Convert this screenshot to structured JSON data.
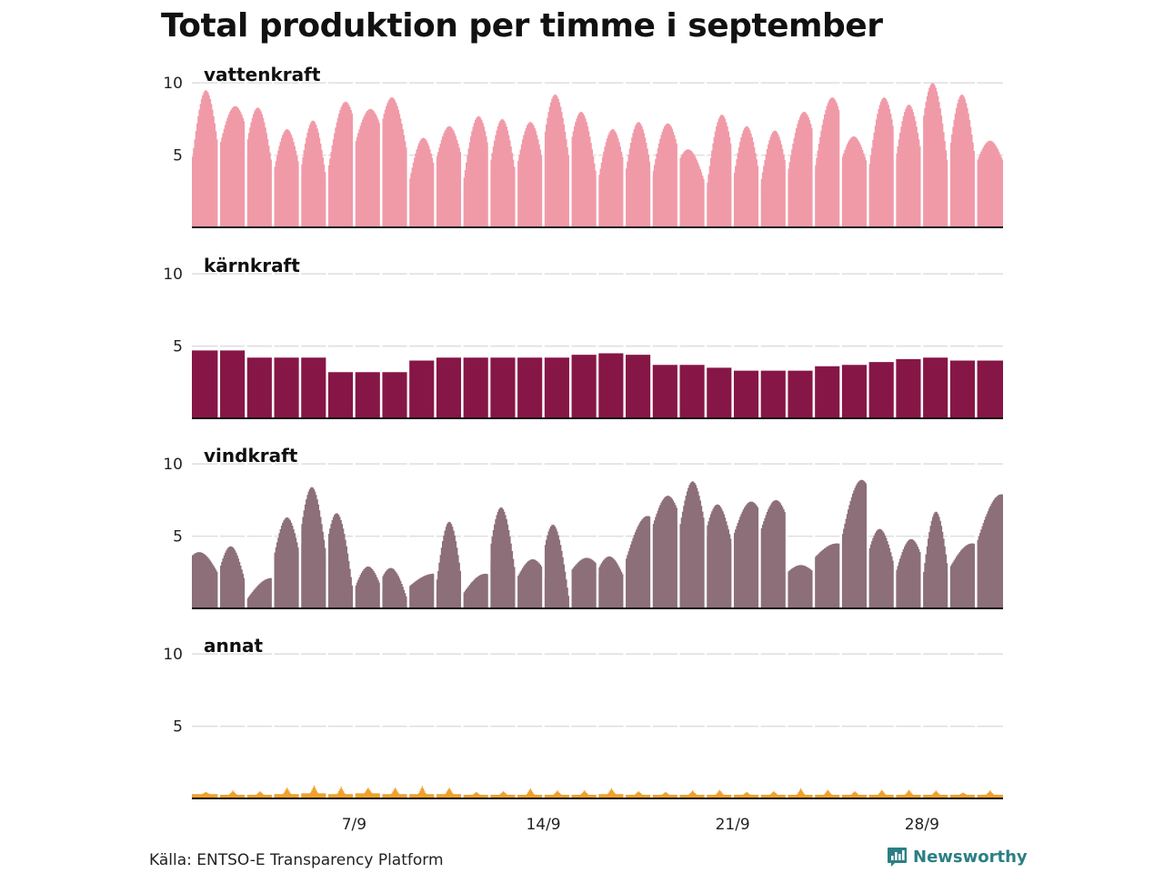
{
  "title": "Total produktion per timme i september",
  "source": "Källa: ENTSO-E Transparency Platform",
  "brand": {
    "name": "Newsworthy",
    "color": "#2b7f84",
    "icon": "bar-chart-logo-icon"
  },
  "chart_data": {
    "type": "area",
    "layout": "small-multiples",
    "x_unit": "date",
    "x_range": [
      "2020-09-01",
      "2020-09-30"
    ],
    "x_ticks": [
      {
        "label": "7/9",
        "day": 7
      },
      {
        "label": "14/9",
        "day": 14
      },
      {
        "label": "21/9",
        "day": 21
      },
      {
        "label": "28/9",
        "day": 28
      }
    ],
    "y_ticks": [
      5,
      10
    ],
    "ylim": [
      0,
      10.2
    ],
    "grid": true,
    "day_separators": true,
    "series": [
      {
        "name": "vattenkraft",
        "color": "#f09aa8",
        "daily_min": [
          4.9,
          5.6,
          4.2,
          3.8,
          3.3,
          3.8,
          5.7,
          5.1,
          3.0,
          4.6,
          2.9,
          3.7,
          4.2,
          4.4,
          3.4,
          3.2,
          3.6,
          3.5,
          3.1,
          2.5,
          3.3,
          2.9,
          3.6,
          3.8,
          4.4,
          3.8,
          4.6,
          4.0,
          4.7,
          4.5
        ],
        "daily_max": [
          9.5,
          8.4,
          8.3,
          6.8,
          7.4,
          8.7,
          8.2,
          9.0,
          6.2,
          7.0,
          7.7,
          7.5,
          7.3,
          9.2,
          8.0,
          6.8,
          7.3,
          7.2,
          5.4,
          7.8,
          7.0,
          6.7,
          8.0,
          9.0,
          6.3,
          9.0,
          8.5,
          10.0,
          9.2,
          6.0
        ],
        "daily_peak_hour": [
          12,
          14,
          10,
          12,
          11,
          16,
          14,
          9,
          13,
          12,
          14,
          11,
          12,
          10,
          9,
          13,
          12,
          14,
          8,
          14,
          12,
          13,
          15,
          16,
          11,
          14,
          12,
          9,
          11,
          12
        ]
      },
      {
        "name": "kärnkraft",
        "color": "#861646",
        "daily_level": [
          4.7,
          4.7,
          4.2,
          4.2,
          4.2,
          3.2,
          3.2,
          3.2,
          4.0,
          4.2,
          4.2,
          4.2,
          4.2,
          4.2,
          4.4,
          4.5,
          4.4,
          3.7,
          3.7,
          3.5,
          3.3,
          3.3,
          3.3,
          3.6,
          3.7,
          3.9,
          4.1,
          4.2,
          4.0,
          4.0
        ]
      },
      {
        "name": "vindkraft",
        "color": "#8c6f78",
        "daily_min": [
          2.4,
          1.8,
          0.6,
          3.5,
          3.6,
          1.0,
          1.4,
          0.6,
          1.5,
          1.4,
          1.0,
          2.3,
          2.1,
          0.3,
          2.6,
          2.2,
          3.2,
          5.6,
          5.4,
          4.5,
          5.0,
          5.3,
          2.5,
          3.5,
          4.8,
          3.0,
          2.4,
          1.9,
          2.8,
          4.5
        ],
        "daily_max": [
          3.9,
          4.3,
          2.1,
          6.3,
          8.4,
          6.6,
          2.9,
          2.8,
          2.4,
          6.0,
          2.4,
          7.0,
          3.4,
          5.8,
          3.5,
          3.6,
          6.4,
          7.8,
          8.8,
          7.2,
          7.4,
          7.5,
          3.0,
          4.5,
          8.9,
          5.5,
          4.8,
          6.7,
          4.5,
          7.9
        ],
        "daily_peak_hour": [
          6,
          10,
          22,
          12,
          10,
          8,
          12,
          8,
          22,
          12,
          20,
          10,
          14,
          8,
          14,
          10,
          20,
          14,
          12,
          10,
          16,
          14,
          12,
          20,
          18,
          10,
          14,
          12,
          20,
          22
        ]
      },
      {
        "name": "annat",
        "color": "#f0a12b",
        "daily_base": [
          0.3,
          0.25,
          0.25,
          0.3,
          0.35,
          0.3,
          0.35,
          0.3,
          0.3,
          0.3,
          0.25,
          0.25,
          0.25,
          0.25,
          0.25,
          0.3,
          0.25,
          0.25,
          0.25,
          0.25,
          0.25,
          0.25,
          0.25,
          0.25,
          0.25,
          0.25,
          0.25,
          0.25,
          0.25,
          0.25
        ],
        "daily_max": [
          0.45,
          0.55,
          0.5,
          0.75,
          0.9,
          0.8,
          0.75,
          0.75,
          0.85,
          0.75,
          0.45,
          0.5,
          0.7,
          0.55,
          0.55,
          0.7,
          0.5,
          0.45,
          0.55,
          0.6,
          0.45,
          0.5,
          0.7,
          0.6,
          0.5,
          0.6,
          0.6,
          0.55,
          0.4,
          0.55
        ]
      }
    ]
  }
}
